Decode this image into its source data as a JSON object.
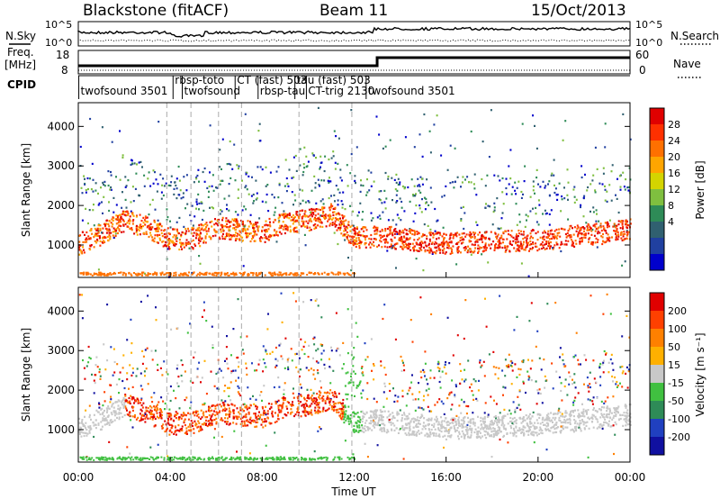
{
  "header": {
    "station": "Blackstone (fitACF)",
    "beam": "Beam 11",
    "date": "15/Oct/2013"
  },
  "top_panel": {
    "left_label_1": "N.Sky",
    "left_label_2": "Freq.",
    "left_label_3": "[MHz]",
    "left_label_4": "CPID",
    "right_label_1": "N.Search",
    "right_label_2": "Nave",
    "ticks": {
      "noise_left": [
        "10^5",
        "10^0"
      ],
      "noise_right": [
        "10^5",
        "10^0"
      ],
      "freq_left": [
        "18",
        "8"
      ],
      "nave_right": [
        "60",
        "0"
      ]
    },
    "cpid_labels": [
      {
        "text": "twofsound 3501",
        "hour": 0.1,
        "row": 1
      },
      {
        "text": "rbsp-toto",
        "hour": 4.2,
        "row": 0
      },
      {
        "text": "twofsound",
        "hour": 4.6,
        "row": 1
      },
      {
        "text": "CT (fast) 503",
        "hour": 6.9,
        "row": 0
      },
      {
        "text": "rbsp-tau",
        "hour": 7.9,
        "row": 1
      },
      {
        "text": "tau (fast) 503",
        "hour": 9.5,
        "row": 0
      },
      {
        "text": "CT-trig 2130",
        "hour": 10.0,
        "row": 1
      },
      {
        "text": "twofsound 3501",
        "hour": 12.6,
        "row": 1
      }
    ]
  },
  "power_panel": {
    "ylabel": "Slant Range [km]",
    "colorbar_label": "Power [dB]",
    "colorbar_ticks": [
      "28",
      "24",
      "20",
      "16",
      "12",
      "8",
      "4"
    ],
    "colors": [
      "#0000cc",
      "#2040a0",
      "#306070",
      "#2e8b57",
      "#7fbf3f",
      "#d4d400",
      "#ffa500",
      "#ff7000",
      "#ff3000",
      "#e00000"
    ]
  },
  "velocity_panel": {
    "ylabel": "Slant Range [km]",
    "colorbar_label": "Velocity [m s⁻¹]",
    "colorbar_ticks": [
      "200",
      "100",
      "50",
      "15",
      "-15",
      "-50",
      "-100",
      "-200"
    ],
    "colors": [
      "#1010a0",
      "#2040c0",
      "#2e8b57",
      "#40c040",
      "#c8c8c8",
      "#ffb000",
      "#ff8000",
      "#ff4000",
      "#e00000"
    ]
  },
  "x_axis": {
    "label": "Time UT",
    "ticks": [
      "00:00",
      "04:00",
      "08:00",
      "12:00",
      "16:00",
      "20:00",
      "00:00"
    ]
  },
  "range_ticks": [
    "1000",
    "2000",
    "3000",
    "4000"
  ],
  "chart_data": [
    {
      "type": "heatmap",
      "title": "Blackstone (fitACF) Beam 11 15/Oct/2013",
      "xlabel": "Time UT",
      "ylabel": "Slant Range [km]",
      "xlim_hours": [
        0,
        24
      ],
      "ylim": [
        180,
        4600
      ],
      "colorbar": "Power [dB]",
      "backscatter_band": [
        {
          "hour": 0.0,
          "range": 1050
        },
        {
          "hour": 1.0,
          "range": 1300
        },
        {
          "hour": 2.0,
          "range": 1650
        },
        {
          "hour": 3.0,
          "range": 1450
        },
        {
          "hour": 4.0,
          "range": 1150
        },
        {
          "hour": 5.0,
          "range": 1200
        },
        {
          "hour": 6.0,
          "range": 1450
        },
        {
          "hour": 7.0,
          "range": 1400
        },
        {
          "hour": 8.0,
          "range": 1350
        },
        {
          "hour": 9.0,
          "range": 1600
        },
        {
          "hour": 10.0,
          "range": 1650
        },
        {
          "hour": 11.0,
          "range": 1800
        },
        {
          "hour": 12.0,
          "range": 1200
        },
        {
          "hour": 13.0,
          "range": 1250
        },
        {
          "hour": 16.0,
          "range": 1050
        },
        {
          "hour": 20.0,
          "range": 1150
        },
        {
          "hour": 24.0,
          "range": 1400
        }
      ]
    },
    {
      "type": "heatmap",
      "title": "",
      "xlabel": "Time UT",
      "ylabel": "Slant Range [km]",
      "xlim_hours": [
        0,
        24
      ],
      "ylim": [
        180,
        4600
      ],
      "colorbar": "Velocity [m s⁻¹]"
    }
  ]
}
